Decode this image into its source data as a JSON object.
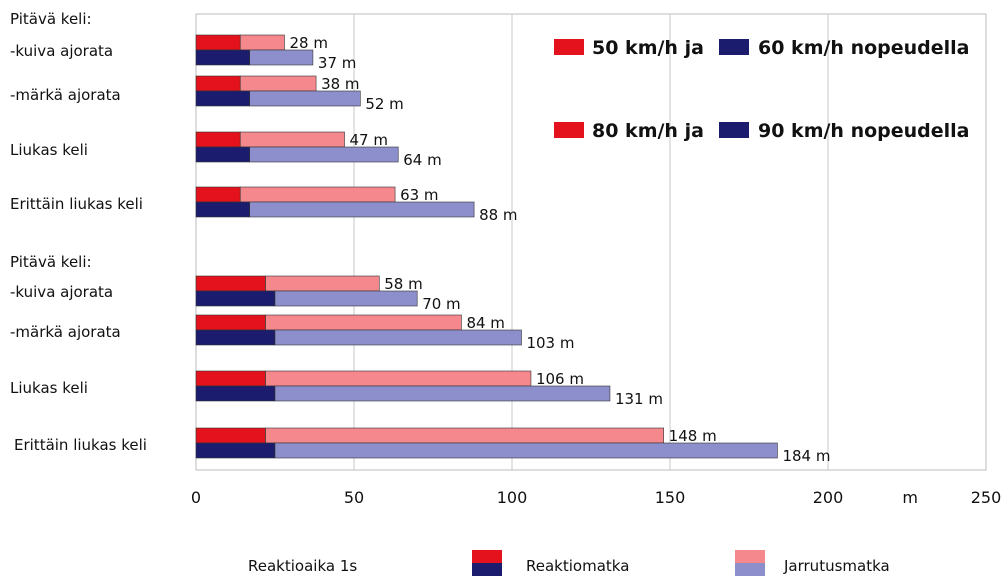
{
  "chart_data": {
    "type": "bar",
    "orientation": "horizontal",
    "stacked": true,
    "xlim": [
      0,
      250
    ],
    "xticks": [
      0,
      50,
      100,
      150,
      200,
      250
    ],
    "unit_label": "m",
    "grid": true,
    "groups": [
      {
        "legend": [
          "50 km/h ja",
          "60 km/h nopeudella"
        ],
        "rows": [
          {
            "labels": [
              "Pitävä keli:",
              "-kuiva ajorata"
            ],
            "bars": [
              {
                "reaction": 14,
                "braking": 14,
                "total_label": "28 m"
              },
              {
                "reaction": 17,
                "braking": 20,
                "total_label": "37 m"
              }
            ]
          },
          {
            "labels": [
              "-märkä ajorata"
            ],
            "bars": [
              {
                "reaction": 14,
                "braking": 24,
                "total_label": "38 m"
              },
              {
                "reaction": 17,
                "braking": 35,
                "total_label": "52 m"
              }
            ]
          },
          {
            "labels": [
              "Liukas keli"
            ],
            "bars": [
              {
                "reaction": 14,
                "braking": 33,
                "total_label": "47 m"
              },
              {
                "reaction": 17,
                "braking": 47,
                "total_label": "64 m"
              }
            ]
          },
          {
            "labels": [
              "Erittäin liukas keli"
            ],
            "bars": [
              {
                "reaction": 14,
                "braking": 49,
                "total_label": "63 m"
              },
              {
                "reaction": 17,
                "braking": 71,
                "total_label": "88 m"
              }
            ]
          }
        ]
      },
      {
        "legend": [
          "80 km/h ja",
          "90 km/h nopeudella"
        ],
        "rows": [
          {
            "labels": [
              "Pitävä keli:",
              "-kuiva ajorata"
            ],
            "bars": [
              {
                "reaction": 22,
                "braking": 36,
                "total_label": "58 m"
              },
              {
                "reaction": 25,
                "braking": 45,
                "total_label": "70 m"
              }
            ]
          },
          {
            "labels": [
              "-märkä ajorata"
            ],
            "bars": [
              {
                "reaction": 22,
                "braking": 62,
                "total_label": "84 m"
              },
              {
                "reaction": 25,
                "braking": 78,
                "total_label": "103 m"
              }
            ]
          },
          {
            "labels": [
              "Liukas keli"
            ],
            "bars": [
              {
                "reaction": 22,
                "braking": 84,
                "total_label": "106 m"
              },
              {
                "reaction": 25,
                "braking": 106,
                "total_label": "131 m"
              }
            ]
          },
          {
            "labels": [
              "Erittäin liukas keli"
            ],
            "bars": [
              {
                "reaction": 22,
                "braking": 126,
                "total_label": "148 m"
              },
              {
                "reaction": 25,
                "braking": 159,
                "total_label": "184 m"
              }
            ]
          }
        ]
      }
    ],
    "bottom_legend": {
      "note": "Reaktioaika 1s",
      "reaction": "Reaktiomatka",
      "braking": "Jarrutusmatka"
    },
    "colors": {
      "reaction_top": "#e3121c",
      "braking_top": "#f4888c",
      "reaction_bottom": "#1c1c6e",
      "braking_bottom": "#8d8fcc",
      "grid": "#c8c8c8"
    }
  }
}
